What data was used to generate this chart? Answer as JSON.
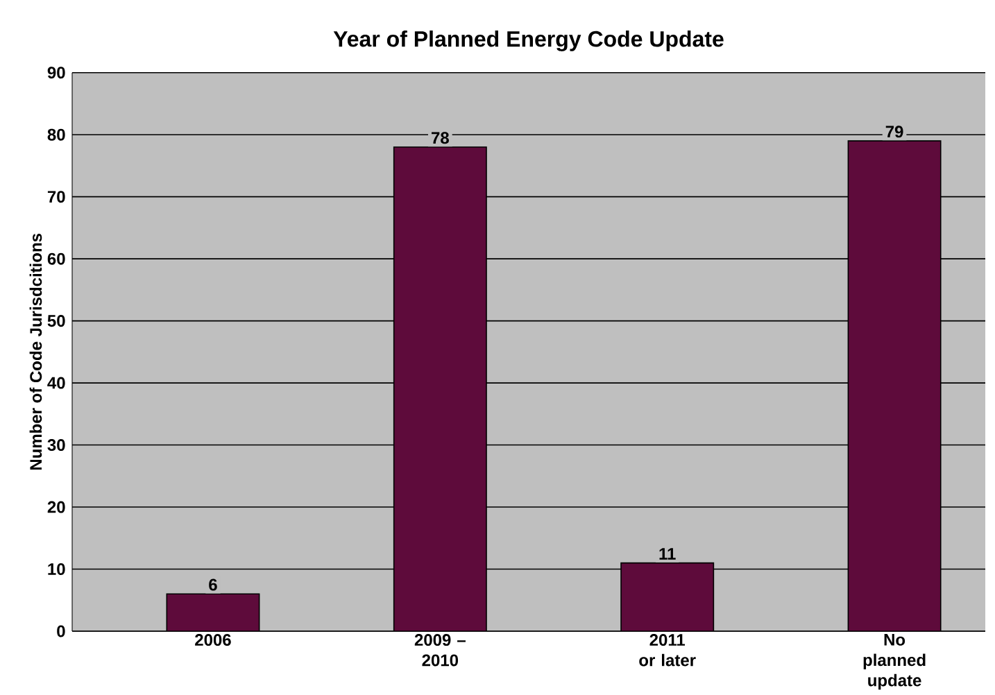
{
  "chart_data": {
    "type": "bar",
    "title": "Year of Planned Energy Code Update",
    "ylabel": "Number of Code Jurisdcitions",
    "categories": [
      "2006",
      "2009 – 2010",
      "2011 or later",
      "No planned update"
    ],
    "values": [
      6,
      78,
      11,
      79
    ],
    "color": "#5e0b3b",
    "ylim": [
      0,
      90
    ],
    "yticks": [
      0,
      10,
      20,
      30,
      40,
      50,
      60,
      70,
      80,
      90
    ],
    "grid": "y",
    "data_labels": true
  }
}
